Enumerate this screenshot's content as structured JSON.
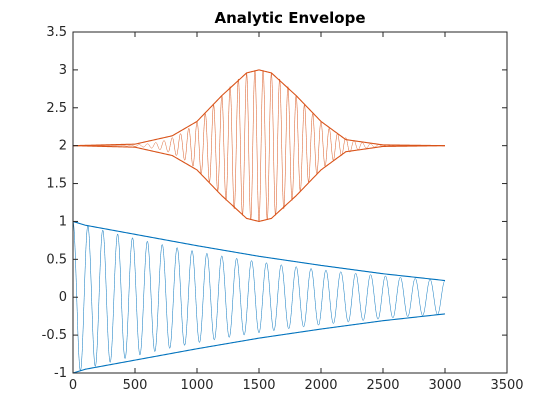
{
  "chart_data": {
    "type": "line",
    "title": "Analytic Envelope",
    "xlabel": "",
    "ylabel": "",
    "xlim": [
      0,
      3500
    ],
    "ylim": [
      -1,
      3.5
    ],
    "x_ticks": [
      0,
      500,
      1000,
      1500,
      2000,
      2500,
      3000,
      3500
    ],
    "y_ticks": [
      -1,
      -0.5,
      0,
      0.5,
      1,
      1.5,
      2,
      2.5,
      3,
      3.5
    ],
    "y_tick_labels": [
      "-1",
      "-0.5",
      "0",
      "0.5",
      "1",
      "1.5",
      "2",
      "2.5",
      "3",
      "3.5"
    ],
    "grid": false,
    "series": [
      {
        "role": "chirp-signal",
        "color": "#0072bd",
        "x_range": [
          0,
          3000
        ],
        "amplitude_start": 1.0,
        "amplitude_end": 0.22,
        "offset": 0,
        "cycles": 25
      },
      {
        "role": "chirp-upper-envelope",
        "color": "#0072bd",
        "x": [
          0,
          100,
          500,
          1000,
          1500,
          2000,
          2500,
          3000
        ],
        "y": [
          1.0,
          0.95,
          0.83,
          0.68,
          0.54,
          0.42,
          0.31,
          0.22
        ]
      },
      {
        "role": "chirp-lower-envelope",
        "color": "#0072bd",
        "x": [
          0,
          100,
          500,
          1000,
          1500,
          2000,
          2500,
          3000
        ],
        "y": [
          -1.0,
          -0.95,
          -0.83,
          -0.68,
          -0.54,
          -0.42,
          -0.31,
          -0.22
        ]
      },
      {
        "role": "gaussian-signal",
        "color": "#d95319",
        "x_range": [
          0,
          3000
        ],
        "center": 1500,
        "sigma": 330,
        "peak_amplitude": 1.0,
        "offset": 2,
        "cycles": 45
      },
      {
        "role": "gaussian-upper-envelope",
        "color": "#d95319",
        "x": [
          0,
          500,
          800,
          1000,
          1200,
          1400,
          1500,
          1600,
          1800,
          2000,
          2200,
          2500,
          3000
        ],
        "y": [
          2.0,
          2.02,
          2.13,
          2.32,
          2.66,
          2.96,
          3.0,
          2.96,
          2.66,
          2.32,
          2.08,
          2.01,
          2.0
        ]
      },
      {
        "role": "gaussian-lower-envelope",
        "color": "#d95319",
        "x": [
          0,
          500,
          800,
          1000,
          1200,
          1400,
          1500,
          1600,
          1800,
          2000,
          2200,
          2500,
          3000
        ],
        "y": [
          2.0,
          1.98,
          1.87,
          1.68,
          1.34,
          1.04,
          1.0,
          1.04,
          1.34,
          1.68,
          1.92,
          1.99,
          2.0
        ]
      }
    ]
  }
}
